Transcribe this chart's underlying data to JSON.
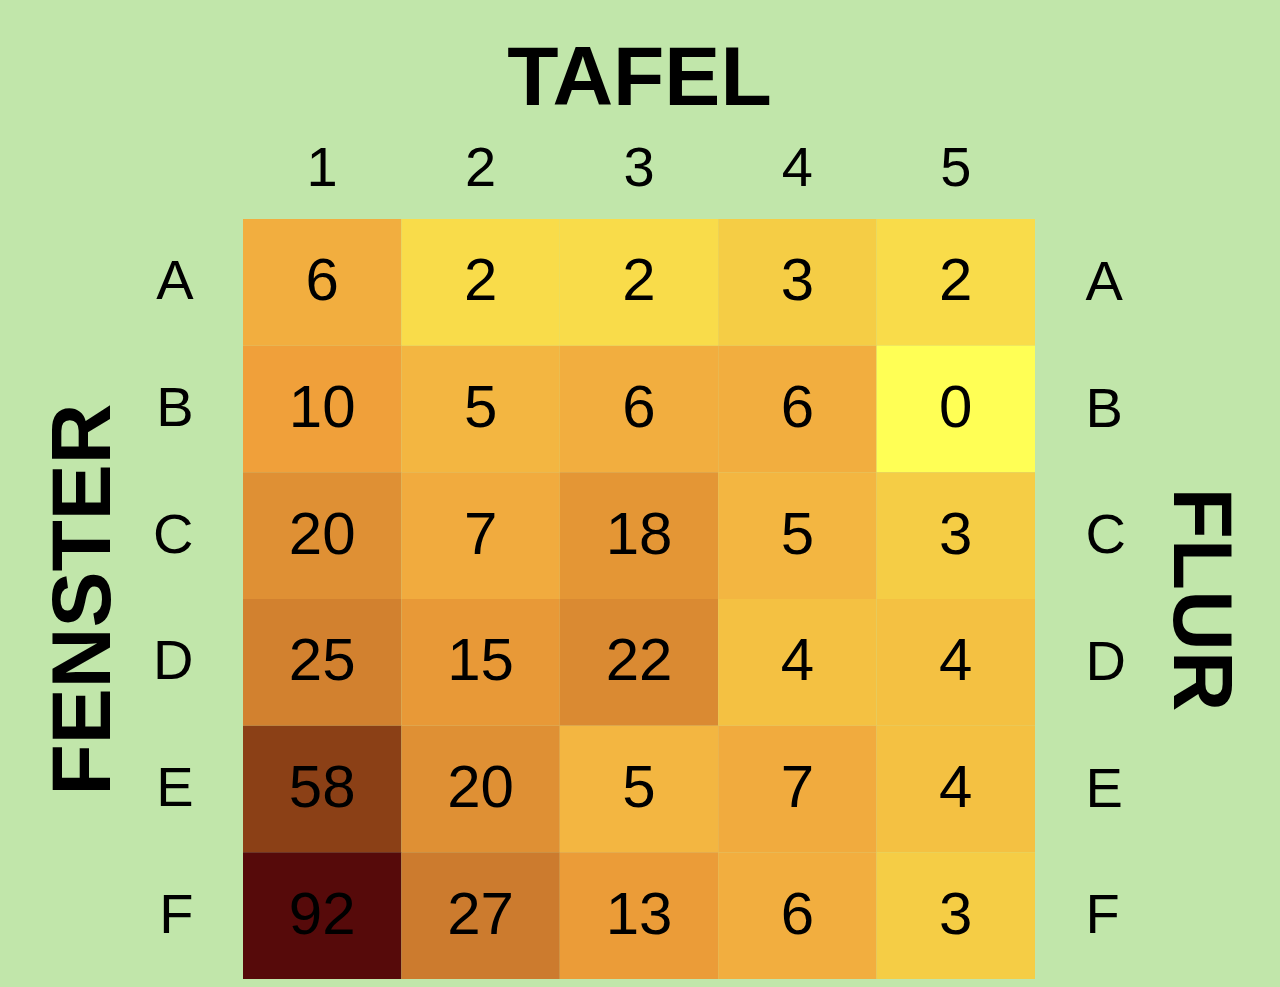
{
  "chart_data": {
    "type": "heatmap",
    "xlabel": "TAFEL",
    "ylabel": "FENSTER",
    "y2label": "FLUR",
    "categories": [
      "1",
      "2",
      "3",
      "4",
      "5"
    ],
    "y_categories": [
      "A",
      "B",
      "C",
      "D",
      "E",
      "F"
    ],
    "y2_categories": [
      "A",
      "B",
      "C",
      "D",
      "E",
      "F"
    ],
    "cells": [
      [
        6,
        2,
        2,
        3,
        2
      ],
      [
        10,
        5,
        6,
        6,
        0
      ],
      [
        20,
        7,
        18,
        5,
        3
      ],
      [
        25,
        15,
        22,
        4,
        4
      ],
      [
        58,
        20,
        5,
        7,
        4
      ],
      [
        92,
        27,
        13,
        6,
        3
      ]
    ],
    "data_labels": true
  }
}
